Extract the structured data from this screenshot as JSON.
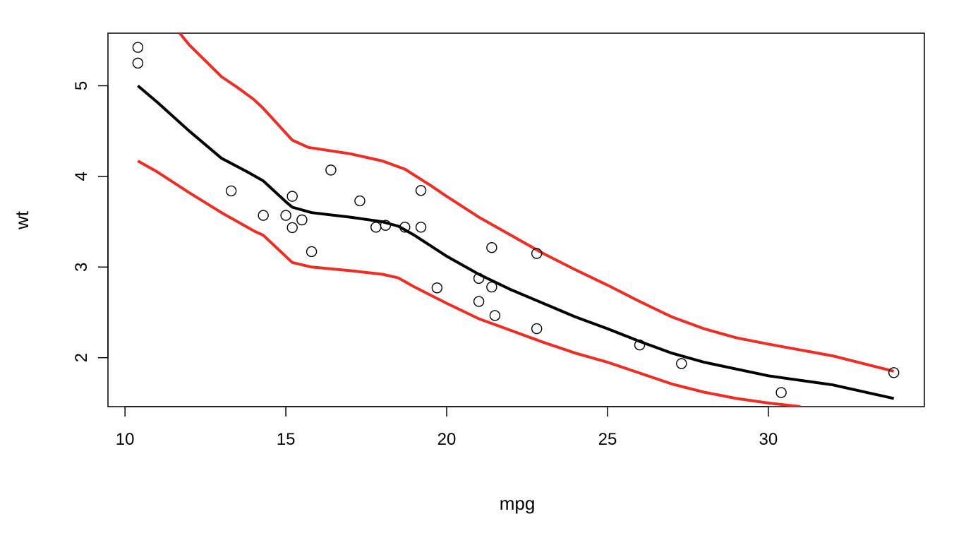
{
  "chart_data": {
    "type": "scatter",
    "title": "",
    "xlabel": "mpg",
    "ylabel": "wt",
    "xlim": [
      9.47,
      34.85
    ],
    "ylim": [
      1.46,
      5.58
    ],
    "xticks": [
      10,
      15,
      20,
      25,
      30
    ],
    "yticks": [
      2,
      3,
      4,
      5
    ],
    "grid": false,
    "points": {
      "x": [
        10.4,
        10.4,
        13.3,
        14.3,
        15.0,
        15.2,
        15.2,
        15.5,
        15.8,
        16.4,
        17.3,
        17.8,
        18.1,
        18.7,
        19.2,
        19.2,
        19.7,
        21.0,
        21.0,
        21.4,
        21.4,
        21.5,
        22.8,
        22.8,
        26.0,
        27.3,
        30.4,
        33.9
      ],
      "y": [
        5.424,
        5.25,
        3.84,
        3.57,
        3.57,
        3.78,
        3.435,
        3.52,
        3.17,
        4.07,
        3.73,
        3.44,
        3.46,
        3.44,
        3.845,
        3.44,
        2.77,
        2.875,
        2.62,
        3.215,
        2.78,
        2.465,
        3.15,
        2.32,
        2.14,
        1.935,
        1.615,
        1.835
      ]
    },
    "series": [
      {
        "name": "fit",
        "color": "#000000",
        "x": [
          10.4,
          11,
          12,
          13,
          13.8,
          14.3,
          15,
          15.2,
          15.8,
          17,
          18,
          18.5,
          19,
          20,
          21,
          22,
          23,
          24,
          25,
          26,
          27,
          28,
          30,
          32,
          33.9
        ],
        "y": [
          5.0,
          4.82,
          4.5,
          4.2,
          4.05,
          3.95,
          3.72,
          3.66,
          3.6,
          3.55,
          3.5,
          3.45,
          3.35,
          3.12,
          2.92,
          2.75,
          2.6,
          2.45,
          2.32,
          2.18,
          2.05,
          1.95,
          1.8,
          1.7,
          1.55
        ]
      },
      {
        "name": "upper",
        "color": "#ee2e24",
        "x": [
          11.7,
          12,
          13,
          13.5,
          14,
          14.3,
          15.2,
          15.7,
          17,
          18,
          18.7,
          19.5,
          20,
          21,
          22,
          23,
          24,
          25,
          26,
          27,
          28,
          29,
          30,
          32,
          33.9
        ],
        "y": [
          5.58,
          5.45,
          5.1,
          4.98,
          4.85,
          4.75,
          4.4,
          4.32,
          4.25,
          4.17,
          4.08,
          3.9,
          3.78,
          3.55,
          3.35,
          3.15,
          2.97,
          2.8,
          2.62,
          2.45,
          2.32,
          2.22,
          2.15,
          2.02,
          1.85
        ]
      },
      {
        "name": "lower",
        "color": "#ee2e24",
        "x": [
          10.4,
          11,
          12,
          13,
          14,
          14.3,
          15.2,
          15.8,
          17,
          18,
          18.5,
          19,
          20,
          21,
          22,
          23,
          24,
          25,
          26,
          27,
          28,
          29,
          30,
          31
        ],
        "y": [
          4.17,
          4.05,
          3.82,
          3.6,
          3.4,
          3.35,
          3.05,
          3.0,
          2.96,
          2.92,
          2.88,
          2.78,
          2.6,
          2.43,
          2.3,
          2.17,
          2.05,
          1.95,
          1.83,
          1.71,
          1.62,
          1.55,
          1.5,
          1.46
        ]
      }
    ]
  }
}
